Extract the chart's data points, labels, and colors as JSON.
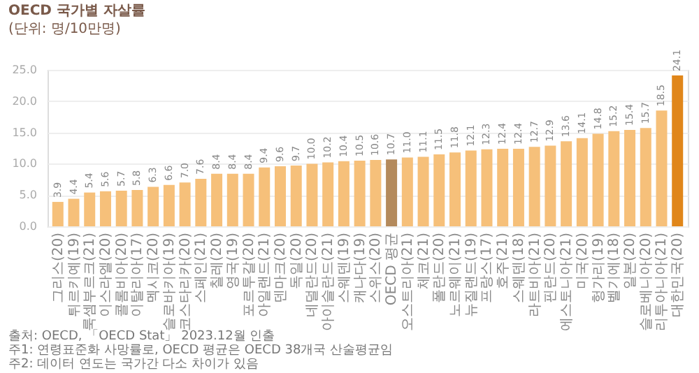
{
  "chart_data": {
    "type": "bar",
    "title": "OECD 국가별 자살률",
    "subtitle": "(단위: 명/10만명)",
    "categories": [
      "그리스(20)",
      "튀르키예(19)",
      "룩셈부르크(21)",
      "이스라엘(20)",
      "콜롬비아(20)",
      "이탈리아(17)",
      "멕시코(20)",
      "슬로바키아(19)",
      "코스타리카(20)",
      "스페인(21)",
      "칠레(20)",
      "영국(19)",
      "포르투갈(20)",
      "아일랜드(21)",
      "덴마크(20)",
      "독일(20)",
      "네덜란드(20)",
      "아이슬란드(21)",
      "스웨덴(19)",
      "캐나다(19)",
      "스위스(20)",
      "OECD 평균",
      "오스트리아(21)",
      "체코(21)",
      "폴란드(20)",
      "노르웨이(21)",
      "뉴질랜드(19)",
      "프랑스(17)",
      "호주(21)",
      "스웨덴(18)",
      "라트비아(21)",
      "핀란드(20)",
      "에스토니아(21)",
      "미국(20)",
      "헝가리(19)",
      "벨기에(18)",
      "일본(20)",
      "슬로베니아(20)",
      "리투아니아(21)",
      "대한민국(20)"
    ],
    "values": [
      3.9,
      4.4,
      5.4,
      5.6,
      5.7,
      5.8,
      6.3,
      6.6,
      7.0,
      7.6,
      8.4,
      8.4,
      8.4,
      9.4,
      9.6,
      9.7,
      10.0,
      10.2,
      10.4,
      10.5,
      10.6,
      10.7,
      11.0,
      11.1,
      11.5,
      11.8,
      12.1,
      12.3,
      12.4,
      12.4,
      12.7,
      12.9,
      13.6,
      14.1,
      14.8,
      15.2,
      15.4,
      15.7,
      18.5,
      24.1
    ],
    "colors": [
      "#f6c07a",
      "#f6c07a",
      "#f6c07a",
      "#f6c07a",
      "#f6c07a",
      "#f6c07a",
      "#f6c07a",
      "#f6c07a",
      "#f6c07a",
      "#f6c07a",
      "#f6c07a",
      "#f6c07a",
      "#f6c07a",
      "#f6c07a",
      "#f6c07a",
      "#f6c07a",
      "#f6c07a",
      "#f6c07a",
      "#f6c07a",
      "#f6c07a",
      "#f6c07a",
      "#b48a5c",
      "#f6c07a",
      "#f6c07a",
      "#f6c07a",
      "#f6c07a",
      "#f6c07a",
      "#f6c07a",
      "#f6c07a",
      "#f6c07a",
      "#f6c07a",
      "#f6c07a",
      "#f6c07a",
      "#f6c07a",
      "#f6c07a",
      "#f6c07a",
      "#f6c07a",
      "#f6c07a",
      "#f6c07a",
      "#e0861a"
    ],
    "value_labels": [
      "3.9",
      "4.4",
      "5.4",
      "5.6",
      "5.7",
      "5.8",
      "6.3",
      "6.6",
      "7.0",
      "7.6",
      "8.4",
      "8.4",
      "8.4",
      "9.4",
      "9.6",
      "9.7",
      "10.0",
      "10.2",
      "10.4",
      "10.5",
      "10.6",
      "10.7",
      "11.0",
      "11.1",
      "11.5",
      "11.8",
      "12.1",
      "12.3",
      "12.4",
      "12.4",
      "12.7",
      "12.9",
      "13.6",
      "14.1",
      "14.8",
      "15.2",
      "15.4",
      "15.7",
      "18.5",
      "24.1"
    ],
    "ylim": [
      0,
      25
    ],
    "yticks": [
      {
        "value": 0,
        "label": "0.0"
      },
      {
        "value": 5,
        "label": "5.0"
      },
      {
        "value": 10,
        "label": "10.0"
      },
      {
        "value": 15,
        "label": "15.0"
      },
      {
        "value": 20,
        "label": "20.0"
      },
      {
        "value": 25,
        "label": "25.0"
      }
    ],
    "grid": "y",
    "annotations": [
      "출처: OECD, 「OECD Stat」 2023.12월 인출",
      "주1: 연령표준화 사망률로, OECD 평균은 OECD 38개국 산술평균임",
      "주2: 데이터 연도는 국가간 다소 차이가 있음"
    ]
  }
}
